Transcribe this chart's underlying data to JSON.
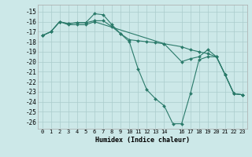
{
  "xlabel": "Humidex (Indice chaleur)",
  "bg_color": "#cce8e8",
  "grid_color": "#aacccc",
  "line_color": "#2a7a6a",
  "xlim": [
    -0.5,
    23.5
  ],
  "ylim": [
    -26.7,
    -14.3
  ],
  "yticks": [
    -15,
    -16,
    -17,
    -18,
    -19,
    -20,
    -21,
    -22,
    -23,
    -24,
    -25,
    -26
  ],
  "xticks": [
    0,
    1,
    2,
    3,
    4,
    5,
    6,
    7,
    8,
    9,
    10,
    11,
    12,
    13,
    14,
    16,
    17,
    18,
    19,
    20,
    21,
    22,
    23
  ],
  "xtick_labels": [
    "0",
    "1",
    "2",
    "3",
    "4",
    "5",
    "6",
    "7",
    "8",
    "9",
    "10",
    "11",
    "12",
    "13",
    "14",
    "16",
    "17",
    "18",
    "19",
    "20",
    "21",
    "22",
    "23"
  ],
  "series": [
    {
      "x": [
        0,
        1,
        2,
        3,
        4,
        5,
        6,
        7,
        8,
        9,
        10,
        11,
        12,
        13,
        14,
        16,
        17,
        18,
        19,
        20,
        21,
        22,
        23
      ],
      "y": [
        -17.4,
        -17.0,
        -16.0,
        -16.2,
        -16.1,
        -16.1,
        -15.2,
        -15.3,
        -16.3,
        -17.2,
        -17.8,
        -17.9,
        -18.0,
        -18.1,
        -18.2,
        -18.5,
        -18.8,
        -19.0,
        -19.2,
        -19.5,
        -21.3,
        -23.2,
        -23.3
      ]
    },
    {
      "x": [
        0,
        1,
        2,
        3,
        4,
        5,
        6,
        7,
        8,
        9,
        10,
        11,
        12,
        13,
        14,
        15,
        16,
        17,
        18,
        19,
        20,
        21,
        22,
        23
      ],
      "y": [
        -17.4,
        -17.0,
        -16.0,
        -16.2,
        -16.1,
        -16.1,
        -15.9,
        -15.9,
        -16.5,
        -17.2,
        -18.0,
        -20.7,
        -22.8,
        -23.7,
        -24.4,
        -26.2,
        -26.2,
        -23.2,
        -19.8,
        -19.5,
        -19.5,
        -21.3,
        -23.2,
        -23.3
      ]
    },
    {
      "x": [
        0,
        1,
        2,
        3,
        4,
        5,
        6,
        14,
        16,
        17,
        18,
        19,
        20,
        21,
        22,
        23
      ],
      "y": [
        -17.4,
        -17.0,
        -16.0,
        -16.3,
        -16.3,
        -16.3,
        -16.0,
        -18.2,
        -20.0,
        -19.7,
        -19.5,
        -18.8,
        -19.5,
        -21.3,
        -23.2,
        -23.3
      ]
    }
  ]
}
